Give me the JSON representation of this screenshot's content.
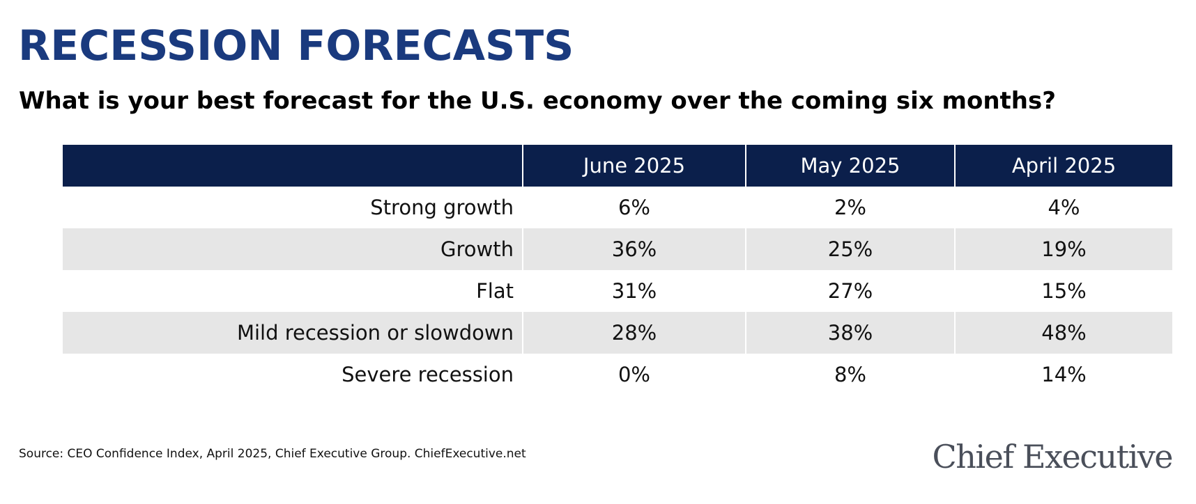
{
  "colors": {
    "title": "#1a3a7e",
    "header_bg": "#0b1f4b",
    "row_alt": "#e6e6e6",
    "row_plain": "#ffffff",
    "logo": "#4a4f5a"
  },
  "header": {
    "title": "RECESSION FORECASTS",
    "subtitle": "What is your best forecast for the U.S. economy over the coming six months?"
  },
  "chart_data": {
    "type": "table",
    "title": "RECESSION FORECASTS",
    "subtitle": "What is your best forecast for the U.S. economy over the coming six months?",
    "columns": [
      "",
      "June 2025",
      "May 2025",
      "April 2025"
    ],
    "rows": [
      {
        "label": "Strong growth",
        "values": [
          "6%",
          "2%",
          "4%"
        ]
      },
      {
        "label": "Growth",
        "values": [
          "36%",
          "25%",
          "19%"
        ]
      },
      {
        "label": "Flat",
        "values": [
          "31%",
          "27%",
          "15%"
        ]
      },
      {
        "label": "Mild recession or slowdown",
        "values": [
          "28%",
          "38%",
          "48%"
        ]
      },
      {
        "label": "Severe recession",
        "values": [
          "0%",
          "8%",
          "14%"
        ]
      }
    ]
  },
  "footer": {
    "source": "Source: CEO Confidence Index, April 2025, Chief Executive Group. ChiefExecutive.net",
    "logo_text": "Chief Executive"
  }
}
